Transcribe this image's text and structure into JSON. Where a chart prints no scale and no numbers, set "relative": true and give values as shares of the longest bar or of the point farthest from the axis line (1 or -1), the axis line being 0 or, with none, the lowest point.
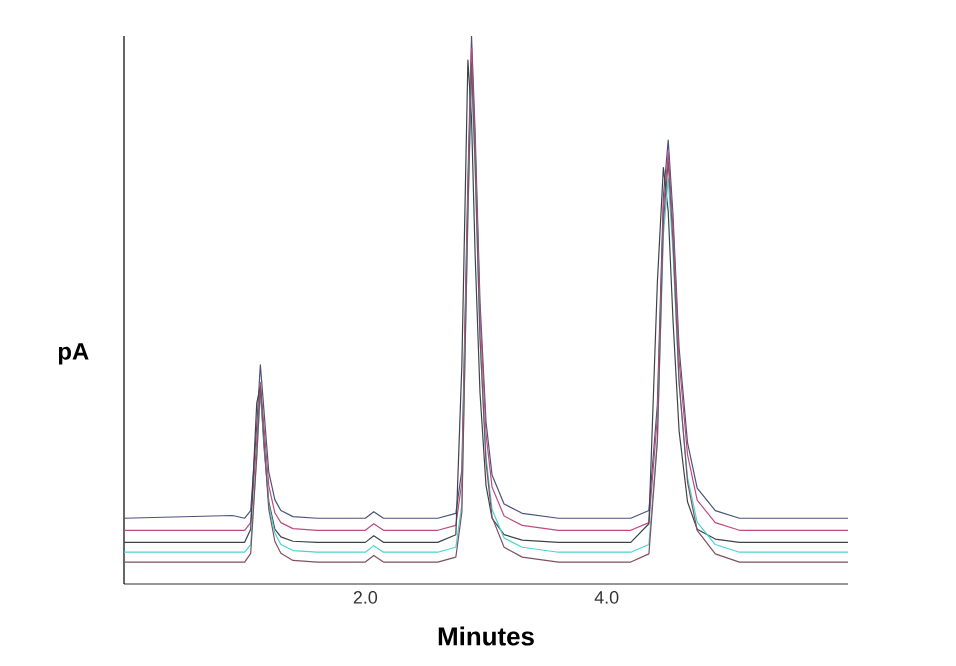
{
  "chart_data": {
    "type": "line",
    "relative": true,
    "xlabel": "Minutes",
    "ylabel": "pA",
    "xlim": [
      0,
      6
    ],
    "xticks": [
      {
        "value": 2,
        "label": "2.0"
      },
      {
        "value": 4,
        "label": "4.0"
      }
    ],
    "tick_labels": "x",
    "x": [
      0,
      0.9,
      1.0,
      1.05,
      1.1,
      1.13,
      1.16,
      1.2,
      1.25,
      1.3,
      1.4,
      1.6,
      2.0,
      2.07,
      2.15,
      2.6,
      2.75,
      2.8,
      2.85,
      2.88,
      2.91,
      2.95,
      3.0,
      3.05,
      3.15,
      3.3,
      3.6,
      4.2,
      4.35,
      4.42,
      4.47,
      4.51,
      4.55,
      4.6,
      4.67,
      4.75,
      4.9,
      5.1,
      6.0
    ],
    "series": [
      {
        "color": "#4a5478",
        "values": [
          0.12,
          0.125,
          0.12,
          0.134,
          0.288,
          0.4,
          0.316,
          0.204,
          0.154,
          0.134,
          0.123,
          0.12,
          0.12,
          0.132,
          0.12,
          0.12,
          0.129,
          0.208,
          0.736,
          1.0,
          0.824,
          0.516,
          0.296,
          0.199,
          0.146,
          0.129,
          0.12,
          0.12,
          0.134,
          0.327,
          0.707,
          0.81,
          0.672,
          0.431,
          0.258,
          0.175,
          0.134,
          0.12,
          0.12
        ]
      },
      {
        "color": "#c04a80",
        "values": [
          0.098,
          0.098,
          0.098,
          0.112,
          0.26,
          0.368,
          0.287,
          0.179,
          0.13,
          0.112,
          0.101,
          0.098,
          0.098,
          0.11,
          0.098,
          0.098,
          0.107,
          0.186,
          0.714,
          0.978,
          0.802,
          0.494,
          0.274,
          0.177,
          0.124,
          0.107,
          0.098,
          0.098,
          0.112,
          0.305,
          0.685,
          0.788,
          0.65,
          0.409,
          0.236,
          0.153,
          0.112,
          0.098,
          0.098
        ]
      },
      {
        "color": "#3c4448",
        "values": [
          0.076,
          0.076,
          0.076,
          0.1,
          0.33,
          0.36,
          0.25,
          0.15,
          0.1,
          0.086,
          0.078,
          0.076,
          0.076,
          0.088,
          0.076,
          0.076,
          0.09,
          0.4,
          0.956,
          0.85,
          0.6,
          0.35,
          0.18,
          0.12,
          0.09,
          0.08,
          0.076,
          0.076,
          0.11,
          0.55,
          0.76,
          0.68,
          0.48,
          0.28,
          0.15,
          0.1,
          0.082,
          0.076,
          0.076
        ]
      },
      {
        "color": "#48d4d4",
        "values": [
          0.058,
          0.058,
          0.058,
          0.072,
          0.232,
          0.348,
          0.261,
          0.145,
          0.093,
          0.072,
          0.061,
          0.058,
          0.058,
          0.07,
          0.058,
          0.058,
          0.067,
          0.145,
          0.668,
          0.93,
          0.756,
          0.45,
          0.232,
          0.136,
          0.084,
          0.067,
          0.058,
          0.058,
          0.072,
          0.263,
          0.638,
          0.74,
          0.604,
          0.365,
          0.194,
          0.113,
          0.072,
          0.058,
          0.058
        ]
      },
      {
        "color": "#805060",
        "values": [
          0.04,
          0.04,
          0.04,
          0.056,
          0.232,
          0.36,
          0.264,
          0.136,
          0.078,
          0.056,
          0.043,
          0.04,
          0.04,
          0.052,
          0.04,
          0.04,
          0.049,
          0.131,
          0.677,
          0.95,
          0.768,
          0.45,
          0.222,
          0.122,
          0.067,
          0.049,
          0.04,
          0.04,
          0.055,
          0.259,
          0.661,
          0.77,
          0.624,
          0.369,
          0.186,
          0.098,
          0.055,
          0.04,
          0.04
        ]
      }
    ]
  }
}
